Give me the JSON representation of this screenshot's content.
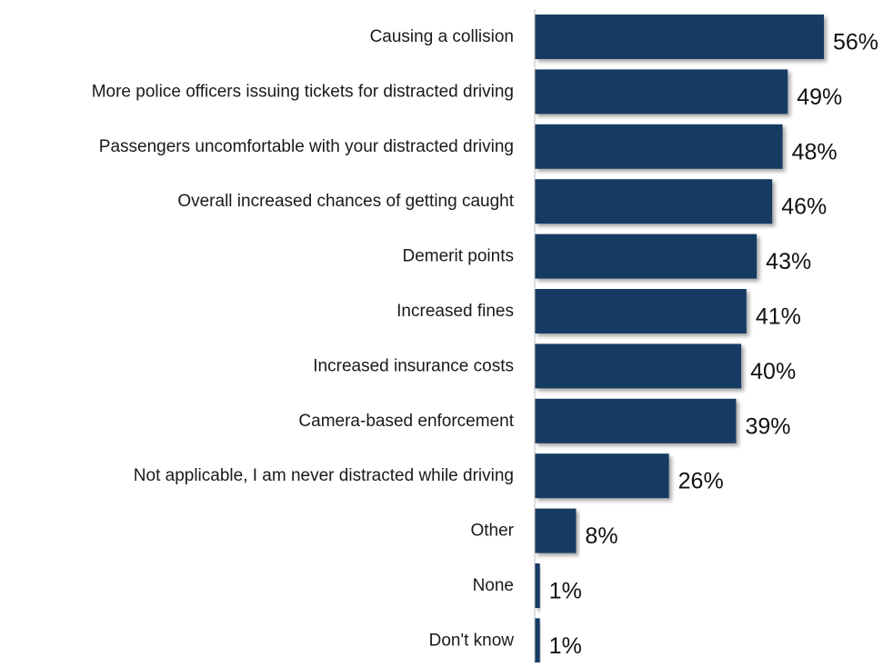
{
  "chart_data": {
    "type": "bar",
    "orientation": "horizontal",
    "title": "",
    "xlabel": "",
    "ylabel": "",
    "value_suffix": "%",
    "xlim": [
      0,
      56
    ],
    "grid": false,
    "legend": "none",
    "bar_color": "#173a63",
    "categories": [
      "Causing a collision",
      "More police officers issuing tickets for distracted driving",
      "Passengers uncomfortable with your distracted driving",
      "Overall increased chances of getting caught",
      "Demerit points",
      "Increased fines",
      "Increased insurance costs",
      "Camera-based enforcement",
      "Not applicable, I am never distracted while driving",
      "Other",
      "None",
      "Don't know"
    ],
    "values": [
      56,
      49,
      48,
      46,
      43,
      41,
      40,
      39,
      26,
      8,
      1,
      1
    ],
    "data_labels": [
      "56%",
      "49%",
      "48%",
      "46%",
      "43%",
      "41%",
      "40%",
      "39%",
      "26%",
      "8%",
      "1%",
      "1%"
    ]
  }
}
